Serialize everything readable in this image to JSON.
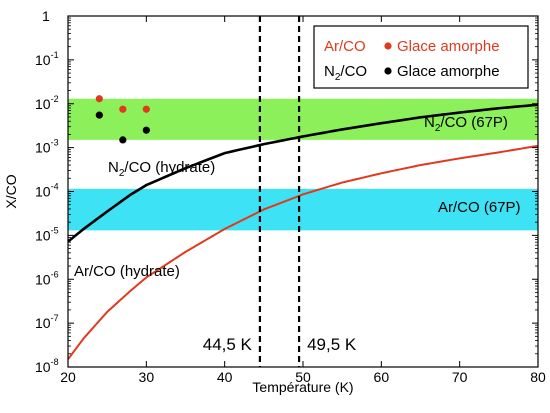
{
  "chart_data": {
    "type": "line",
    "xlabel": "Température (K)",
    "ylabel": "X/CO",
    "xlim": [
      20,
      80
    ],
    "ylim": [
      1e-08,
      1
    ],
    "yscale": "log",
    "x_ticks": [
      "20",
      "30",
      "40",
      "50",
      "60",
      "70",
      "80"
    ],
    "y_ticks": [
      {
        "base": "10",
        "exp": "-8"
      },
      {
        "base": "10",
        "exp": "-7"
      },
      {
        "base": "10",
        "exp": "-6"
      },
      {
        "base": "10",
        "exp": "-5"
      },
      {
        "base": "10",
        "exp": "-4"
      },
      {
        "base": "10",
        "exp": "-3"
      },
      {
        "base": "10",
        "exp": "-2"
      },
      {
        "base": "10",
        "exp": "-1"
      },
      {
        "base": "1",
        "exp": ""
      }
    ],
    "bands": [
      {
        "label": "N₂/CO (67P)",
        "ymin": 0.0015,
        "ymax": 0.013,
        "color": "#8cf05a"
      },
      {
        "label": "Ar/CO (67P)",
        "ymin": 1.3e-05,
        "ymax": 0.000115,
        "color": "#3ee2f5"
      }
    ],
    "vlines": [
      {
        "x": 44.5,
        "label": "44,5 K"
      },
      {
        "x": 49.5,
        "label": "49,5 K"
      }
    ],
    "series": [
      {
        "name": "N₂/CO (hydrate)",
        "color": "#000000",
        "x": [
          20,
          22,
          25,
          28,
          30,
          35,
          40,
          45,
          50,
          55,
          60,
          65,
          70,
          75,
          80
        ],
        "y": [
          7.2e-06,
          1.4e-05,
          3.5e-05,
          8.5e-05,
          0.00014,
          0.00034,
          0.00075,
          0.0012,
          0.0018,
          0.0026,
          0.0036,
          0.0049,
          0.0063,
          0.0079,
          0.0095
        ]
      },
      {
        "name": "Ar/CO (hydrate)",
        "color": "#e03a1e",
        "x": [
          20,
          22,
          25,
          28,
          30,
          35,
          40,
          45,
          50,
          55,
          60,
          65,
          70,
          75,
          80
        ],
        "y": [
          1.5e-08,
          4.5e-08,
          1.8e-07,
          5.5e-07,
          1.1e-06,
          4.2e-06,
          1.4e-05,
          3.9e-05,
          8.6e-05,
          0.00016,
          0.00026,
          0.0004,
          0.00057,
          0.00078,
          0.0011
        ]
      }
    ],
    "series_labels": [
      {
        "prefix": "N",
        "sub": "2",
        "suffix": "/CO (hydrate)",
        "color": "#000000"
      },
      {
        "prefix": "Ar/CO (hydrate)",
        "sub": "",
        "suffix": "",
        "color": "#000000"
      }
    ],
    "band_labels": [
      {
        "prefix": "N",
        "sub": "2",
        "suffix": "/CO (67P)"
      },
      {
        "prefix": "Ar/CO (67P)",
        "sub": "",
        "suffix": ""
      }
    ],
    "points": [
      {
        "series": "Ar/CO",
        "x": 24,
        "y": 0.013,
        "color": "#e03a1e"
      },
      {
        "series": "Ar/CO",
        "x": 27,
        "y": 0.0075,
        "color": "#e03a1e"
      },
      {
        "series": "Ar/CO",
        "x": 30,
        "y": 0.0075,
        "color": "#e03a1e"
      },
      {
        "series": "N2/CO",
        "x": 24,
        "y": 0.0055,
        "color": "#000000"
      },
      {
        "series": "N2/CO",
        "x": 27,
        "y": 0.0015,
        "color": "#000000"
      },
      {
        "series": "N2/CO",
        "x": 30,
        "y": 0.0025,
        "color": "#000000"
      }
    ],
    "legend": {
      "placement": "top-right",
      "entries": [
        {
          "label_prefix": "Ar/CO",
          "label_sub": "",
          "label_suffix": "",
          "label_color": "#e03a1e",
          "marker_color": "#e03a1e",
          "marker_label": "Glace amorphe",
          "marker_label_color": "#e03a1e"
        },
        {
          "label_prefix": "N",
          "label_sub": "2",
          "label_suffix": "/CO",
          "label_color": "#000000",
          "marker_color": "#000000",
          "marker_label": "Glace amorphe",
          "marker_label_color": "#000000"
        }
      ]
    }
  }
}
